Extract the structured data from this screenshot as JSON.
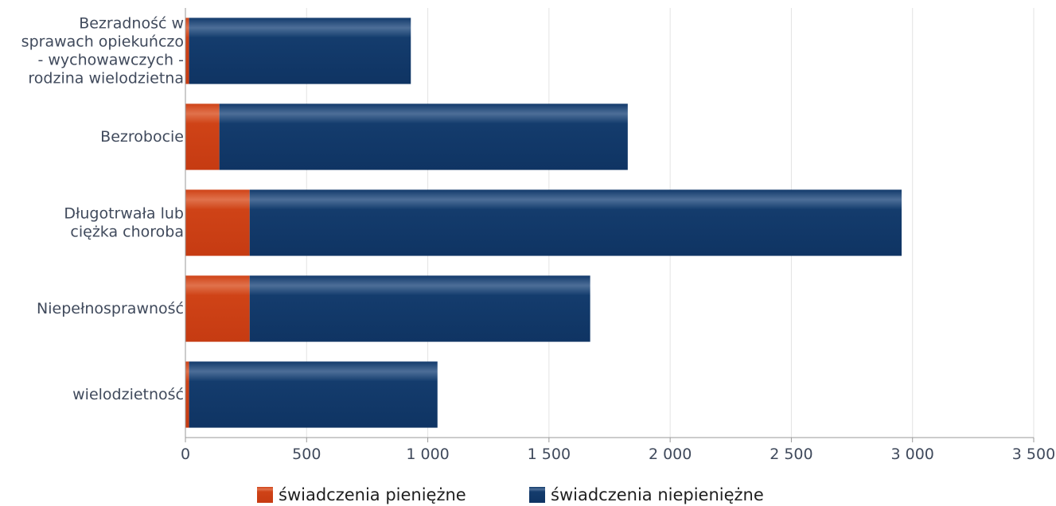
{
  "chart_data": {
    "type": "bar",
    "orientation": "horizontal",
    "stacked": true,
    "categories": [
      [
        "Bezradność w",
        "sprawach opiekuńczo",
        "- wychowawczych -",
        "rodzina wielodzietna"
      ],
      [
        "Bezrobocie"
      ],
      [
        "Długotrwała lub",
        "ciężka choroba"
      ],
      [
        "Niepełnosprawność"
      ],
      [
        "wielodzietność"
      ]
    ],
    "series": [
      {
        "name": "świadczenia pieniężne",
        "color": "#d2451c",
        "values": [
          15,
          140,
          265,
          265,
          15
        ]
      },
      {
        "name": "świadczenia niepieniężne",
        "color": "#173f70",
        "values": [
          915,
          1685,
          2690,
          1405,
          1025
        ]
      }
    ],
    "xlim": [
      0,
      3500
    ],
    "xticks": [
      0,
      500,
      1000,
      1500,
      2000,
      2500,
      3000,
      3500
    ],
    "xtick_labels": [
      "0",
      "500",
      "1 000",
      "1 500",
      "2 000",
      "2 500",
      "3 000",
      "3 500"
    ],
    "grid": true,
    "legend_position": "bottom"
  }
}
